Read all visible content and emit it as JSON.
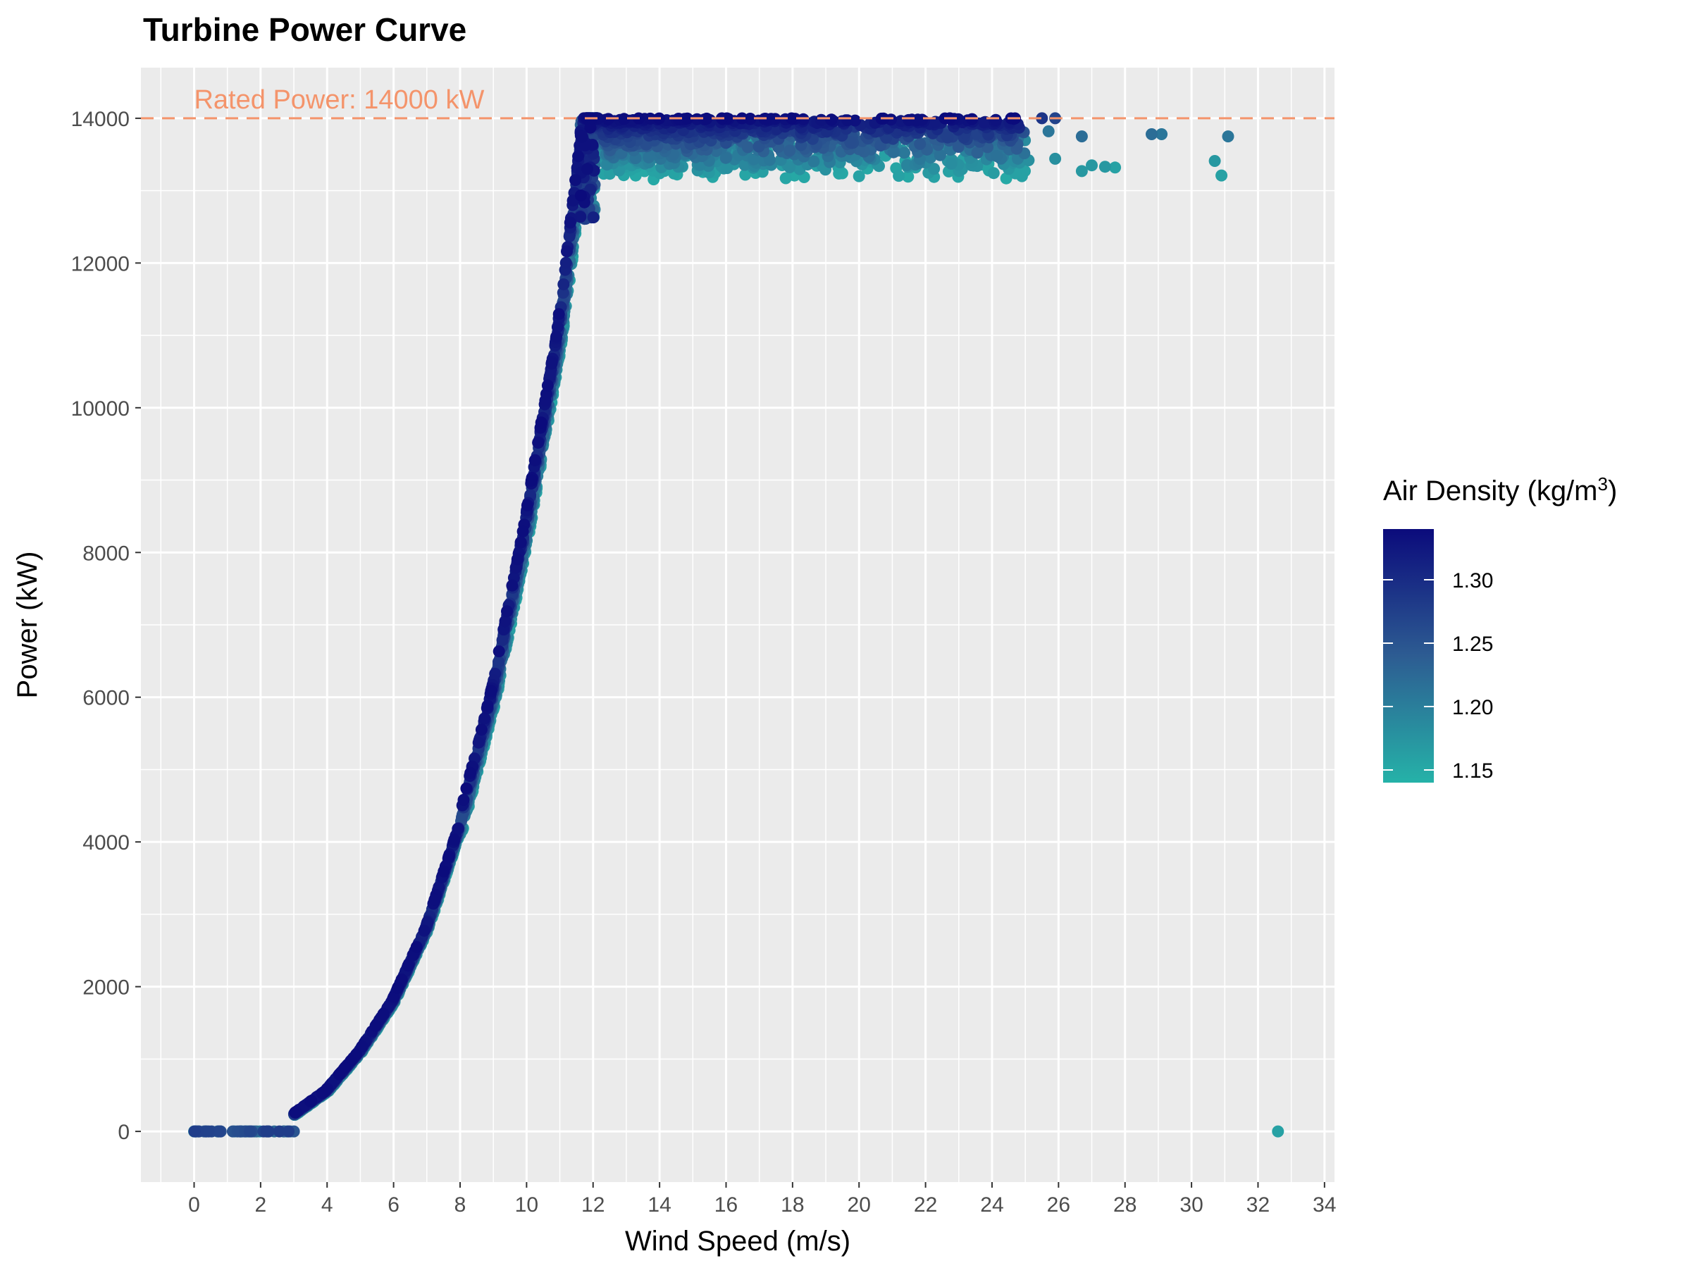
{
  "chart_data": {
    "type": "scatter",
    "title": "Turbine Power Curve",
    "xlabel": "Wind Speed (m/s)",
    "ylabel": "Power (kW)",
    "xlim": [
      -1.6,
      34.3
    ],
    "ylim": [
      -700,
      14700
    ],
    "x_ticks": [
      0,
      2,
      4,
      6,
      8,
      10,
      12,
      14,
      16,
      18,
      20,
      22,
      24,
      26,
      28,
      30,
      32,
      34
    ],
    "y_ticks": [
      0,
      2000,
      4000,
      6000,
      8000,
      10000,
      12000,
      14000
    ],
    "grid": true,
    "panel_background": "#ebebeb",
    "reference_line": {
      "y": 14000,
      "style": "dashed",
      "color": "#f4946b",
      "label": "Rated Power: 14000 kW"
    },
    "color_scale": {
      "title": "Air Density (kg/m³)",
      "title_base": "Air Density (kg/m",
      "title_sup": "3",
      "title_close": ")",
      "low_color": "#25b2a8",
      "high_color": "#0b0b7c",
      "range": [
        1.14,
        1.34
      ],
      "ticks": [
        1.15,
        1.2,
        1.25,
        1.3
      ],
      "tick_labels": [
        "1.15",
        "1.20",
        "1.25",
        "1.30"
      ],
      "legend_position": "right"
    },
    "rated_power_kw": 14000,
    "cut_in_speed": 3.0,
    "rated_speed": 11.8,
    "curve": [
      {
        "x": 3.0,
        "y": 230
      },
      {
        "x": 4.0,
        "y": 560
      },
      {
        "x": 5.0,
        "y": 1100
      },
      {
        "x": 6.0,
        "y": 1800
      },
      {
        "x": 7.0,
        "y": 2800
      },
      {
        "x": 8.0,
        "y": 4200
      },
      {
        "x": 9.0,
        "y": 6000
      },
      {
        "x": 10.0,
        "y": 8300
      },
      {
        "x": 11.0,
        "y": 11000
      },
      {
        "x": 11.8,
        "y": 14000
      }
    ],
    "zero_output_points": [
      {
        "x": 0.0,
        "y": 0,
        "density": 1.19
      },
      {
        "x": 0.3,
        "y": 0,
        "density": 1.24
      },
      {
        "x": 0.8,
        "y": 0,
        "density": 1.26
      },
      {
        "x": 1.4,
        "y": 0,
        "density": 1.25
      },
      {
        "x": 1.7,
        "y": 0,
        "density": 1.21
      },
      {
        "x": 2.2,
        "y": 0,
        "density": 1.23
      },
      {
        "x": 2.7,
        "y": 0,
        "density": 1.24
      },
      {
        "x": 3.0,
        "y": 0,
        "density": 1.25
      },
      {
        "x": 32.6,
        "y": 0,
        "density": 1.16
      }
    ],
    "outlier_points": [
      {
        "x": 25.5,
        "y": 14000,
        "density": 1.29
      },
      {
        "x": 25.9,
        "y": 14000,
        "density": 1.27
      },
      {
        "x": 25.7,
        "y": 13820,
        "density": 1.21
      },
      {
        "x": 26.7,
        "y": 13750,
        "density": 1.22
      },
      {
        "x": 28.8,
        "y": 13780,
        "density": 1.22
      },
      {
        "x": 29.1,
        "y": 13780,
        "density": 1.21
      },
      {
        "x": 31.1,
        "y": 13750,
        "density": 1.21
      },
      {
        "x": 25.9,
        "y": 13440,
        "density": 1.18
      },
      {
        "x": 26.7,
        "y": 13270,
        "density": 1.17
      },
      {
        "x": 27.0,
        "y": 13350,
        "density": 1.17
      },
      {
        "x": 27.4,
        "y": 13330,
        "density": 1.17
      },
      {
        "x": 27.7,
        "y": 13320,
        "density": 1.16
      },
      {
        "x": 30.7,
        "y": 13410,
        "density": 1.17
      },
      {
        "x": 30.9,
        "y": 13210,
        "density": 1.16
      },
      {
        "x": 25.1,
        "y": 13420,
        "density": 1.18
      },
      {
        "x": 24.9,
        "y": 13200,
        "density": 1.16
      },
      {
        "x": 24.5,
        "y": 13300,
        "density": 1.17
      },
      {
        "x": 23.4,
        "y": 13400,
        "density": 1.18
      },
      {
        "x": 22.8,
        "y": 13420,
        "density": 1.18
      },
      {
        "x": 21.7,
        "y": 13320,
        "density": 1.16
      },
      {
        "x": 20.0,
        "y": 13200,
        "density": 1.16
      },
      {
        "x": 20.6,
        "y": 13340,
        "density": 1.17
      }
    ]
  }
}
